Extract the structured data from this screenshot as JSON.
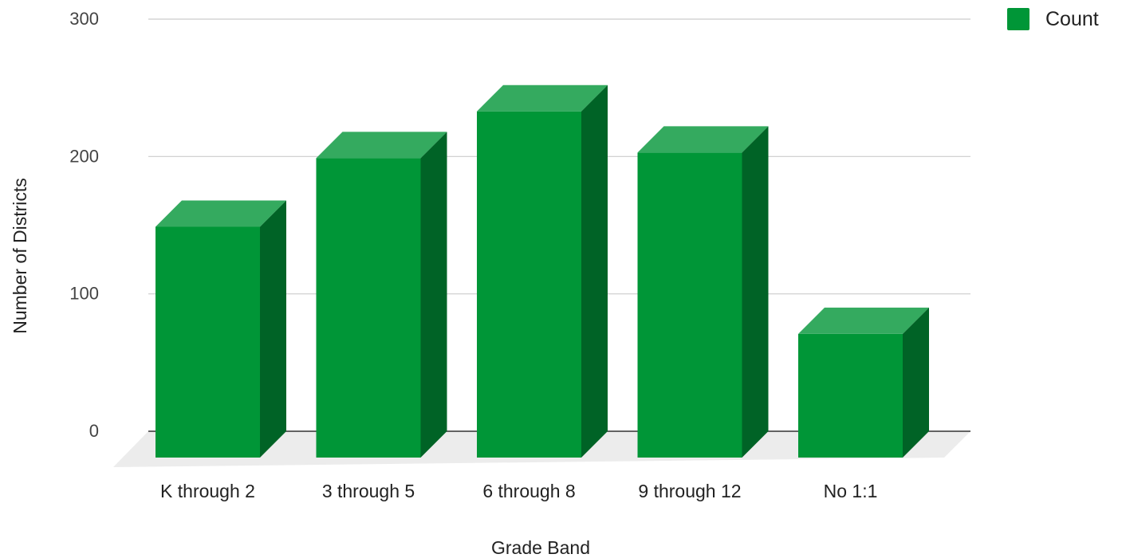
{
  "chart_data": {
    "type": "bar",
    "style": "3d",
    "categories": [
      "K through 2",
      "3 through 5",
      "6 through 8",
      "9 through 12",
      "No 1:1"
    ],
    "series": [
      {
        "name": "Count",
        "values": [
          168,
          218,
          252,
          222,
          90
        ]
      }
    ],
    "xlabel": "Grade Band",
    "ylabel": "Number of Districts",
    "yticks": [
      0,
      100,
      200,
      300
    ],
    "ylim": [
      0,
      300
    ],
    "grid": true,
    "legend": {
      "position": "top-right",
      "label": "Count"
    },
    "colors": {
      "front": "#009637",
      "top": "#34aa5f",
      "side": "#006326",
      "floor": "#ececec",
      "grid": "#cccccc",
      "baseline": "#333333",
      "tick_text": "#444444",
      "label_text": "#222222"
    }
  }
}
